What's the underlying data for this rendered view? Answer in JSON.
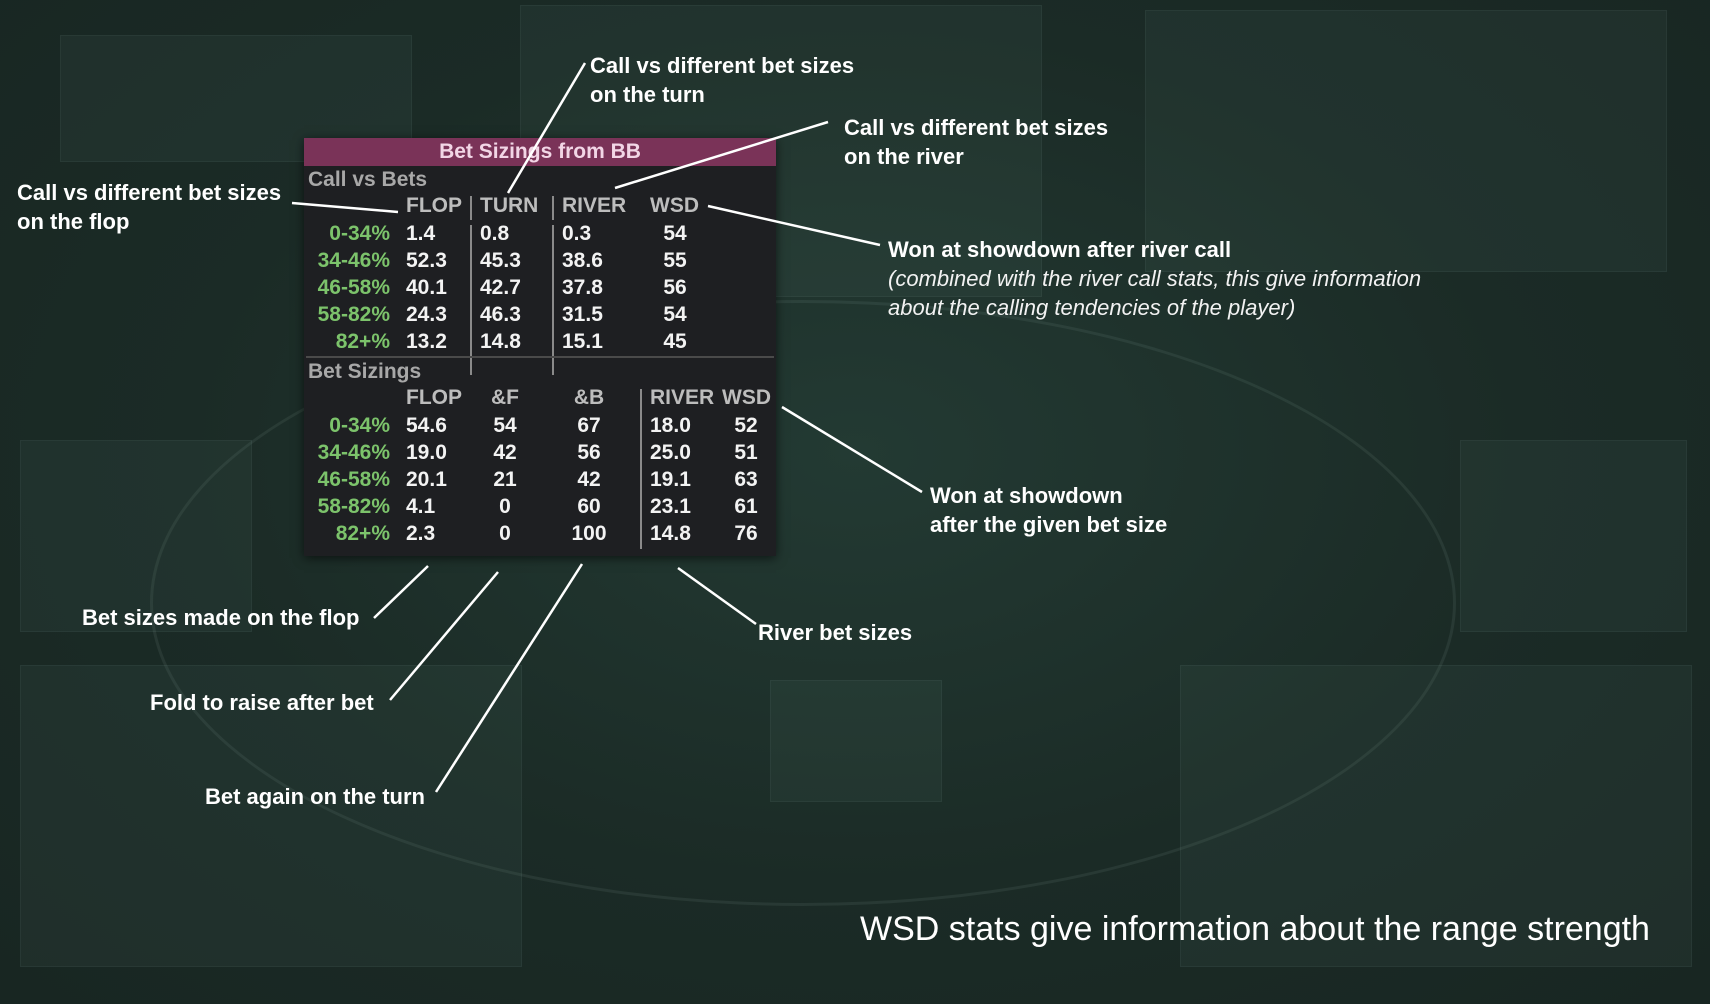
{
  "hud": {
    "title": "Bet Sizings from BB",
    "call_section": {
      "heading": "Call vs Bets",
      "columns": [
        "FLOP",
        "TURN",
        "RIVER",
        "WSD"
      ],
      "rows": [
        {
          "label": "0-34%",
          "values": [
            "1.4",
            "0.8",
            "0.3",
            "54"
          ]
        },
        {
          "label": "34-46%",
          "values": [
            "52.3",
            "45.3",
            "38.6",
            "55"
          ]
        },
        {
          "label": "46-58%",
          "values": [
            "40.1",
            "42.7",
            "37.8",
            "56"
          ]
        },
        {
          "label": "58-82%",
          "values": [
            "24.3",
            "46.3",
            "31.5",
            "54"
          ]
        },
        {
          "label": "82+%",
          "values": [
            "13.2",
            "14.8",
            "15.1",
            "45"
          ]
        }
      ]
    },
    "bet_section": {
      "heading": "Bet Sizings",
      "columns": [
        "FLOP",
        "&F",
        "&B",
        "RIVER",
        "WSD"
      ],
      "rows": [
        {
          "label": "0-34%",
          "values": [
            "54.6",
            "54",
            "67",
            "18.0",
            "52"
          ]
        },
        {
          "label": "34-46%",
          "values": [
            "19.0",
            "42",
            "56",
            "25.0",
            "51"
          ]
        },
        {
          "label": "46-58%",
          "values": [
            "20.1",
            "21",
            "42",
            "19.1",
            "63"
          ]
        },
        {
          "label": "58-82%",
          "values": [
            "4.1",
            "0",
            "60",
            "23.1",
            "61"
          ]
        },
        {
          "label": "82+%",
          "values": [
            "2.3",
            "0",
            "100",
            "14.8",
            "76"
          ]
        }
      ]
    }
  },
  "annotations": {
    "flop_call": [
      "Call vs different bet sizes",
      "on the flop"
    ],
    "turn_call": [
      "Call vs different bet sizes",
      "on the turn"
    ],
    "river_call": [
      "Call vs different bet sizes",
      "on the river"
    ],
    "wsd_call_title": "Won at showdown after river call",
    "wsd_call_note": [
      "(combined with the river call stats, this give information",
      "about the calling tendencies of the player)"
    ],
    "wsd_bet": [
      "Won at showdown",
      "after the given bet size"
    ],
    "flop_bet": "Bet sizes made on the flop",
    "fold_raise": "Fold to raise after bet",
    "bet_again": "Bet again on the turn",
    "river_bet": "River bet sizes"
  },
  "footer": "WSD stats give information about the range strength",
  "colors": {
    "background": "#1c2a26",
    "hud_title_bar": "#7a3358",
    "row_label_green": "#7cc36b",
    "value_white": "#f3f3f3",
    "annotation": "#ffffff"
  }
}
